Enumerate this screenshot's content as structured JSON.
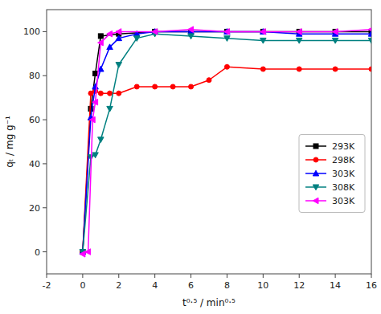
{
  "chart_data": {
    "type": "line",
    "xlabel": "t⁰·⁵ / min⁰·⁵",
    "ylabel": "qₜ / mg g⁻¹",
    "xlim": [
      -2,
      16
    ],
    "ylim": [
      -10,
      110
    ],
    "xticks": [
      -2,
      0,
      2,
      4,
      6,
      8,
      10,
      12,
      14,
      16
    ],
    "yticks": [
      0,
      20,
      40,
      60,
      80,
      100
    ],
    "grid": false,
    "legend": "center right",
    "series": [
      {
        "name": "293K",
        "color": "#000000",
        "marker": "square",
        "x": [
          0.0,
          0.45,
          0.7,
          1.0,
          2.0,
          4.0,
          6.0,
          8.0,
          10.0,
          12.0,
          14.0,
          16.0
        ],
        "values": [
          0,
          65,
          81,
          98,
          99,
          100,
          100,
          100,
          100,
          100,
          100,
          100
        ]
      },
      {
        "name": "298K",
        "color": "#ff0000",
        "marker": "circle",
        "x": [
          0.0,
          0.45,
          0.7,
          1.0,
          1.5,
          2.0,
          3.0,
          4.0,
          5.0,
          6.0,
          7.0,
          8.0,
          10.0,
          12.0,
          14.0,
          16.0
        ],
        "values": [
          0,
          72,
          73,
          72,
          72,
          72,
          75,
          75,
          75,
          75,
          78,
          84,
          83,
          83,
          83,
          83
        ]
      },
      {
        "name": "303K",
        "color": "#0000ff",
        "marker": "triangle-up",
        "x": [
          0.0,
          0.45,
          0.7,
          1.0,
          1.5,
          2.0,
          3.0,
          4.0,
          6.0,
          8.0,
          10.0,
          12.0,
          14.0,
          16.0
        ],
        "values": [
          0,
          61,
          75,
          83,
          93,
          97,
          99,
          100,
          100,
          100,
          100,
          99,
          99,
          99
        ]
      },
      {
        "name": "308K",
        "color": "#008080",
        "marker": "triangle-down",
        "x": [
          0.0,
          0.45,
          0.7,
          1.0,
          1.5,
          2.0,
          3.0,
          4.0,
          6.0,
          8.0,
          10.0,
          12.0,
          14.0,
          16.0
        ],
        "values": [
          0,
          43,
          44,
          51,
          65,
          85,
          97,
          99,
          98,
          97,
          96,
          96,
          96,
          96
        ]
      },
      {
        "name": "303K",
        "color": "#ff00ff",
        "marker": "triangle-left",
        "x": [
          0.0,
          0.3,
          0.55,
          0.7,
          1.0,
          1.5,
          2.0,
          4.0,
          6.0,
          8.0,
          10.0,
          12.0,
          14.0,
          16.0
        ],
        "values": [
          -1,
          0,
          60,
          68,
          95,
          99,
          100,
          100,
          101,
          100,
          100,
          100,
          100,
          101
        ]
      }
    ]
  }
}
